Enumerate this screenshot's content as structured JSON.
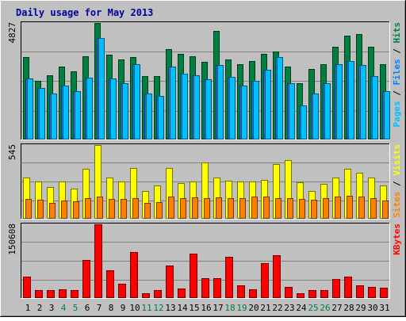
{
  "chart_data": {
    "type": "bar",
    "title": "Daily usage for May 2013",
    "days": [
      "1",
      "2",
      "3",
      "4",
      "5",
      "6",
      "7",
      "8",
      "9",
      "10",
      "11",
      "12",
      "13",
      "14",
      "15",
      "16",
      "17",
      "18",
      "19",
      "20",
      "21",
      "22",
      "23",
      "24",
      "25",
      "26",
      "27",
      "28",
      "29",
      "30",
      "31"
    ],
    "weekend_days": [
      "4",
      "5",
      "11",
      "12",
      "18",
      "19",
      "25",
      "26"
    ],
    "panels": [
      {
        "id": "hits-files",
        "max_label": "4827",
        "ymax": 4827,
        "label_parts": [
          {
            "text": "Pages",
            "color": "#00c0ff"
          },
          {
            "text": " / ",
            "color": "#000000"
          },
          {
            "text": "Files",
            "color": "#0080ff"
          },
          {
            "text": " / ",
            "color": "#000000"
          },
          {
            "text": "Hits",
            "color": "#008040"
          }
        ],
        "series": [
          {
            "name": "Hits",
            "color": "#008040",
            "values": [
              3400,
              2400,
              2650,
              3000,
              2800,
              3450,
              4827,
              3500,
              3300,
              3400,
              2600,
              2600,
              3720,
              3530,
              3450,
              3200,
              4500,
              3300,
              3100,
              3250,
              3530,
              3630,
              3000,
              2320,
              2900,
              3100,
              3820,
              4300,
              4350,
              3820,
              3100
            ]
          },
          {
            "name": "Files",
            "color": "#0080ff",
            "values": [
              2500,
              2100,
              1900,
              2230,
              1990,
              2530,
              4200,
              2500,
              2300,
              3100,
              1900,
              1800,
              3000,
              2700,
              2650,
              2480,
              3070,
              2580,
              2200,
              2400,
              2870,
              3400,
              2330,
              1400,
              1900,
              2300,
              3100,
              3250,
              3070,
              2600,
              1980
            ]
          },
          {
            "name": "Pages",
            "color": "#00c0ff",
            "values": [
              2500,
              2100,
              1900,
              2230,
              1990,
              2530,
              4200,
              2500,
              2300,
              3100,
              1900,
              1800,
              3000,
              2700,
              2650,
              2480,
              3070,
              2580,
              2200,
              2400,
              2870,
              3400,
              2330,
              1400,
              1900,
              2300,
              3100,
              3250,
              3070,
              2600,
              1980
            ]
          }
        ]
      },
      {
        "id": "visits-sites",
        "max_label": "545",
        "ymax": 545,
        "label_parts": [
          {
            "text": "Sites",
            "color": "#ff8000"
          },
          {
            "text": " / ",
            "color": "#000000"
          },
          {
            "text": "Visits",
            "color": "#ffff00"
          }
        ],
        "series": [
          {
            "name": "Visits",
            "color": "#ffff00",
            "values": [
              305,
              270,
              230,
              275,
              220,
              365,
              545,
              305,
              270,
              375,
              200,
              240,
              375,
              260,
              275,
              415,
              300,
              280,
              270,
              275,
              285,
              405,
              430,
              265,
              200,
              255,
              300,
              365,
              340,
              300,
              240
            ]
          },
          {
            "name": "Sites",
            "color": "#ff8000",
            "values": [
              145,
              135,
              110,
              130,
              125,
              150,
              160,
              140,
              145,
              150,
              110,
              120,
              160,
              150,
              155,
              150,
              155,
              150,
              150,
              160,
              160,
              150,
              150,
              140,
              135,
              150,
              160,
              165,
              160,
              150,
              130
            ]
          }
        ]
      },
      {
        "id": "kbytes",
        "max_label": "150608",
        "ymax": 150608,
        "label_parts": [
          {
            "text": "KBytes",
            "color": "#ff0000"
          }
        ],
        "series": [
          {
            "name": "KBytes",
            "color": "#ff0000",
            "values": [
              42500,
              15000,
              14500,
              16500,
              14500,
              77000,
              150608,
              55000,
              28000,
              93000,
              9000,
              14000,
              66000,
              18000,
              90000,
              39000,
              40000,
              84000,
              25000,
              17000,
              70000,
              86000,
              21000,
              8000,
              14000,
              14500,
              37000,
              42000,
              25000,
              22000,
              19000
            ]
          }
        ]
      }
    ]
  }
}
